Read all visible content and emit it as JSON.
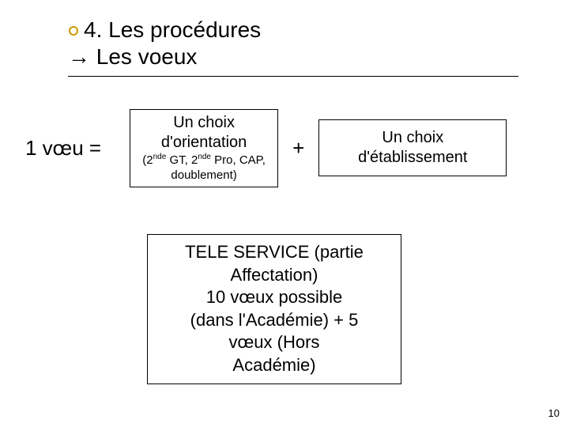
{
  "colors": {
    "background": "#ffffff",
    "text": "#000000",
    "ring_border": "#cc9900",
    "rule": "#000000",
    "box_border": "#000000"
  },
  "typography": {
    "font_family": "Verdana",
    "title_fontsize": 28,
    "body_fontsize": 22,
    "box_fontsize": 20,
    "pagenum_fontsize": 13
  },
  "header": {
    "title": "4. Les procédures",
    "subtitle_arrow": "→",
    "subtitle_text": " Les voeux"
  },
  "equation": {
    "left": "1 vœu =",
    "orientation": {
      "line1": "Un choix",
      "line2": "d'orientation",
      "sub": "(2nde GT, 2nde Pro, CAP, doublement)"
    },
    "plus": "+",
    "etablissement": {
      "line1": "Un choix",
      "line2": "d'établissement"
    }
  },
  "tele": {
    "l1": "TELE SERVICE (partie",
    "l2": "Affectation)",
    "l3": "10 vœux possible",
    "l4": "(dans l'Académie) + 5",
    "l5": "vœux (Hors",
    "l6": "Académie)"
  },
  "page_number": "10"
}
